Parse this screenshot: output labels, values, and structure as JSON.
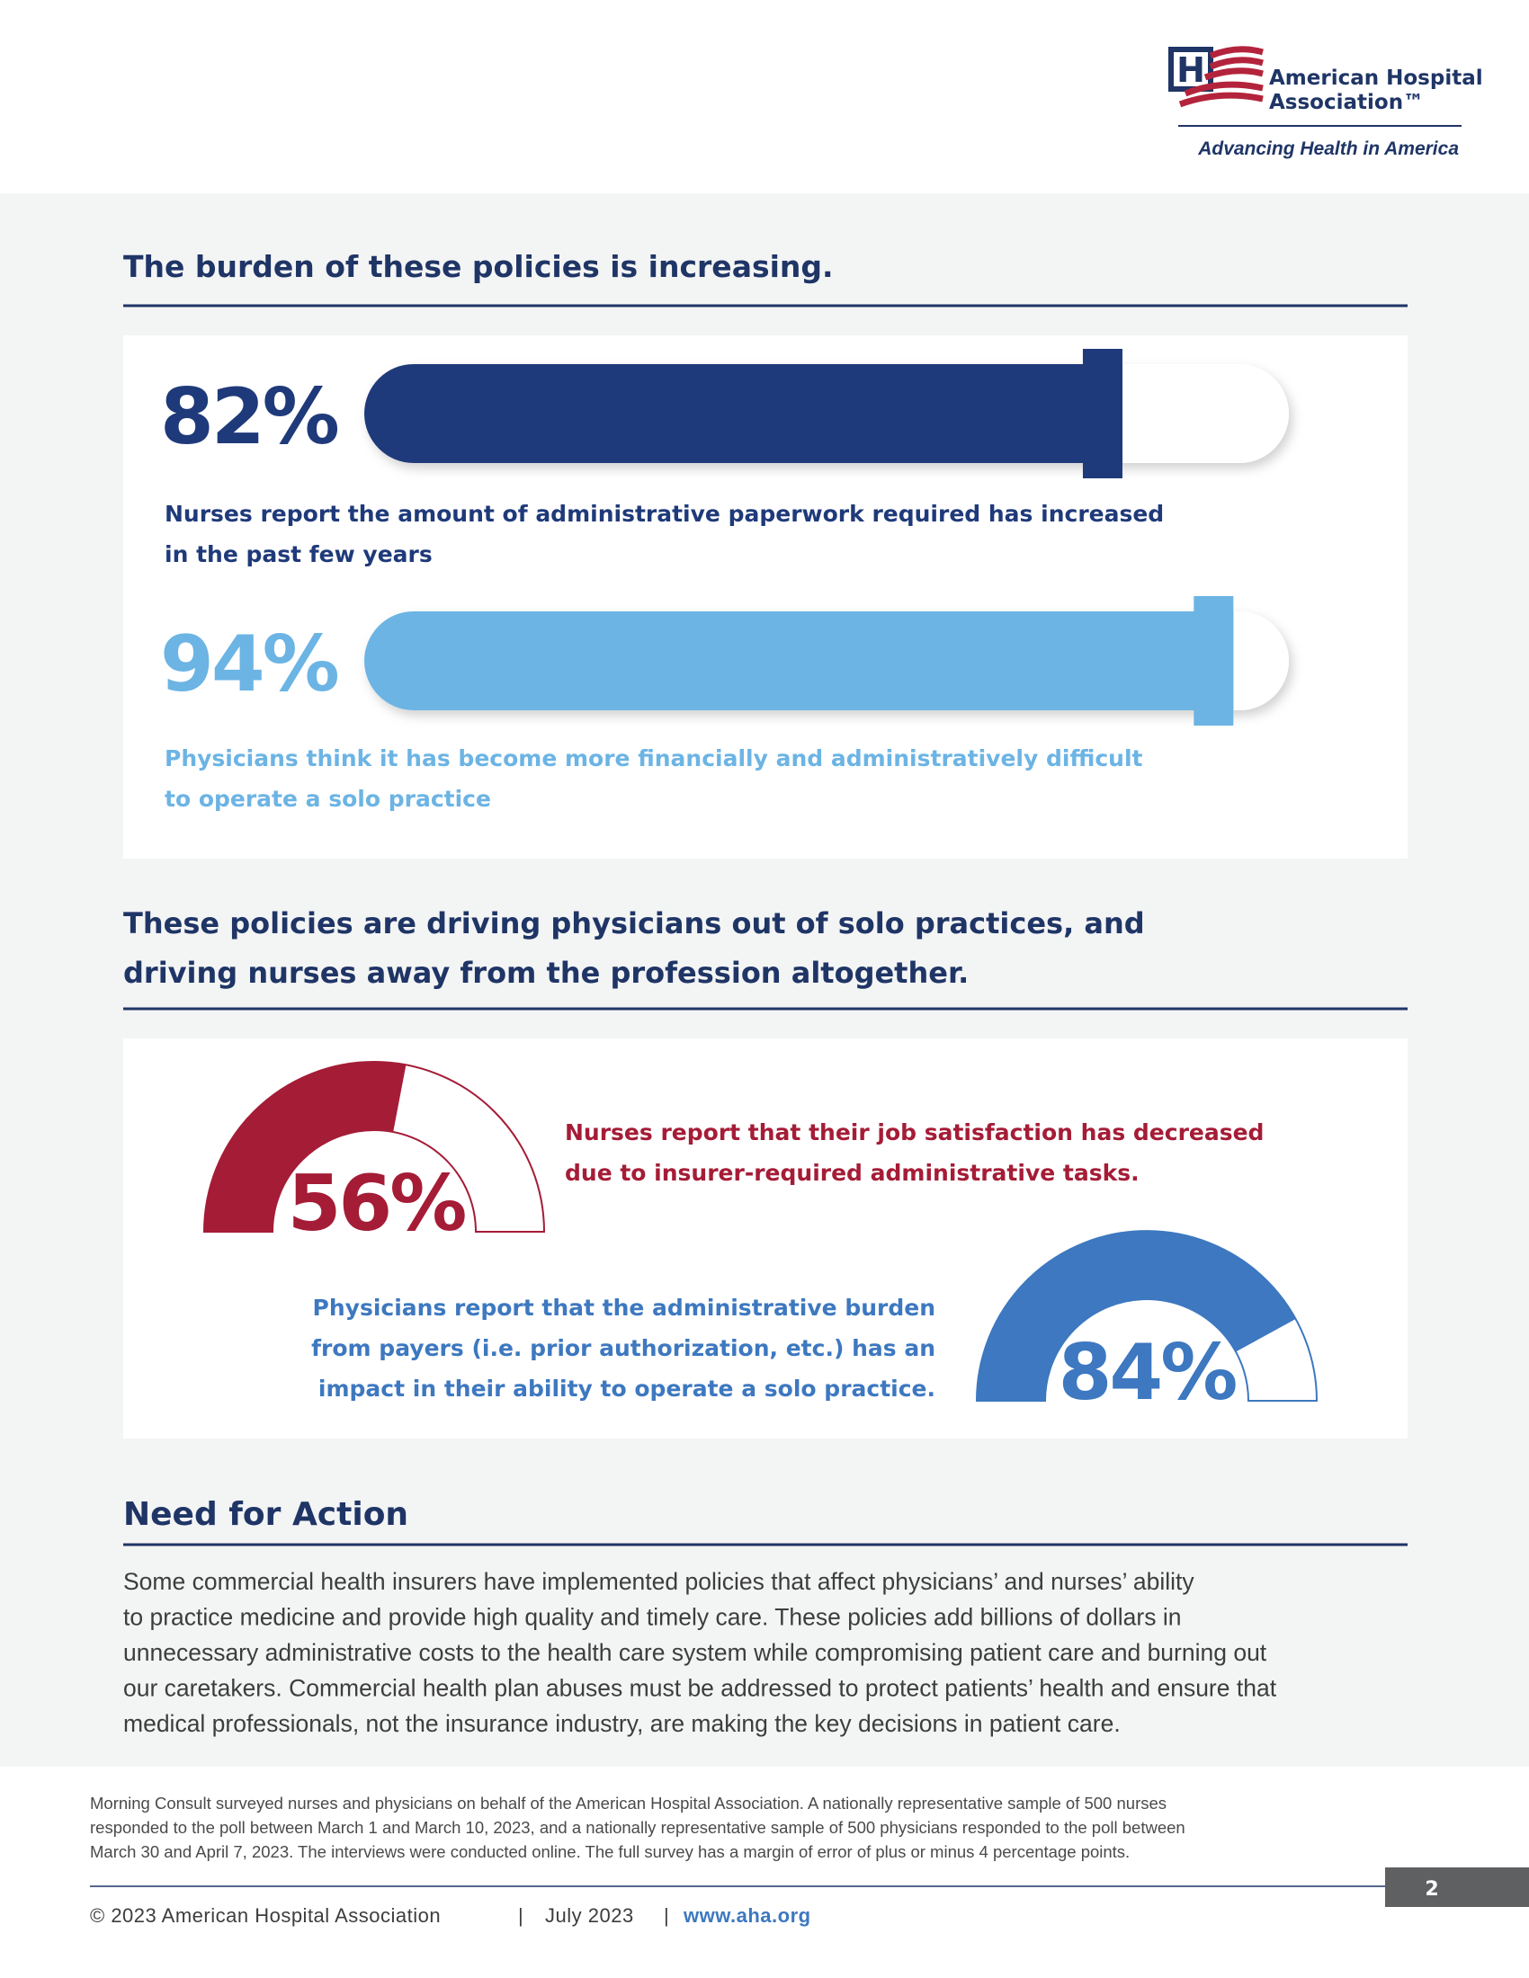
{
  "header": {
    "logo": {
      "name_line1": "American Hospital",
      "name_line2": "Association™",
      "tagline": "Advancing Health in America"
    }
  },
  "sections": [
    {
      "heading": [
        "The burden of these policies is increasing."
      ],
      "stats": [
        {
          "value": 82,
          "value_label": "82%",
          "text": [
            "Nurses report the amount of administrative paperwork required has increased",
            "in the past few years"
          ]
        },
        {
          "value": 94,
          "value_label": "94%",
          "text": [
            "Physicians think it has become more financially and administratively difficult",
            "to operate a solo practice"
          ]
        }
      ]
    },
    {
      "heading": [
        "These policies are driving physicians out of solo practices, and",
        "driving nurses away from the profession altogether."
      ],
      "stats": [
        {
          "value": 56,
          "value_label": "56%",
          "text": [
            "Nurses report that their job satisfaction has decreased",
            "due to insurer-required administrative tasks."
          ]
        },
        {
          "value": 84,
          "value_label": "84%",
          "text": [
            "Physicians report that the administrative burden",
            "from payers (i.e. prior authorization, etc.) has an",
            "impact in their ability to operate a solo practice."
          ]
        }
      ]
    },
    {
      "heading": [
        "Need for Action"
      ],
      "paragraph": [
        "Some commercial health insurers have implemented policies that affect physicians’ and nurses’ ability",
        "to practice medicine and provide high quality and timely care. These policies add billions of dollars in",
        "unnecessary administrative costs to the health care system while compromising patient care and burning out",
        "our caretakers. Commercial health plan abuses must be addressed to protect patients’ health and ensure that",
        "medical professionals, not the insurance industry, are making the key decisions in patient care."
      ]
    }
  ],
  "footnote": [
    "Morning Consult surveyed nurses and physicians on behalf of the American Hospital Association. A nationally representative sample of 500 nurses",
    "responded to the poll between March 1 and March 10, 2023, and a nationally representative sample of 500 physicians responded to the poll between",
    "March 30 and April 7, 2023. The interviews were conducted online. The full survey has a margin of error of plus or minus 4 percentage points."
  ],
  "footer": {
    "copyright": "© 2023 American Hospital Association",
    "separator": "|",
    "date": "July 2023",
    "url": "www.aha.org",
    "page_number": "2"
  }
}
